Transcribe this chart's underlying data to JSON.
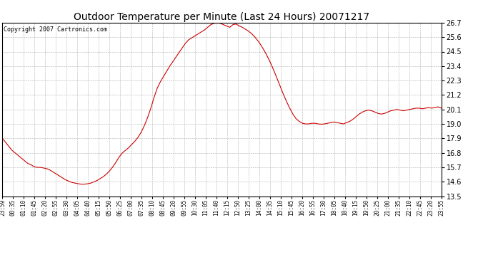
{
  "title": "Outdoor Temperature per Minute (Last 24 Hours) 20071217",
  "copyright": "Copyright 2007 Cartronics.com",
  "line_color": "#cc0000",
  "background_color": "#ffffff",
  "grid_color": "#b0b0b0",
  "ylim": [
    13.5,
    26.7
  ],
  "yticks": [
    13.5,
    14.6,
    15.7,
    16.8,
    17.9,
    19.0,
    20.1,
    21.2,
    22.3,
    23.4,
    24.5,
    25.6,
    26.7
  ],
  "xtick_labels": [
    "23:59",
    "00:35",
    "01:10",
    "01:45",
    "02:20",
    "02:55",
    "03:30",
    "04:05",
    "04:40",
    "05:15",
    "05:50",
    "06:25",
    "07:00",
    "07:35",
    "08:10",
    "08:45",
    "09:20",
    "09:55",
    "10:30",
    "11:05",
    "11:40",
    "12:15",
    "12:50",
    "13:25",
    "14:00",
    "14:35",
    "15:10",
    "15:45",
    "16:20",
    "16:55",
    "17:30",
    "18:05",
    "18:40",
    "19:15",
    "19:50",
    "20:25",
    "21:00",
    "21:35",
    "22:10",
    "22:45",
    "23:20",
    "23:55"
  ],
  "temp_data": [
    17.9,
    17.6,
    17.3,
    17.0,
    16.8,
    16.6,
    16.4,
    16.2,
    16.0,
    15.9,
    15.75,
    15.7,
    15.7,
    15.65,
    15.6,
    15.5,
    15.35,
    15.2,
    15.05,
    14.9,
    14.75,
    14.65,
    14.55,
    14.5,
    14.45,
    14.42,
    14.42,
    14.45,
    14.5,
    14.6,
    14.7,
    14.85,
    15.0,
    15.2,
    15.45,
    15.75,
    16.1,
    16.5,
    16.8,
    17.0,
    17.2,
    17.45,
    17.7,
    18.0,
    18.4,
    18.9,
    19.5,
    20.2,
    21.0,
    21.7,
    22.2,
    22.6,
    23.0,
    23.4,
    23.75,
    24.1,
    24.45,
    24.8,
    25.15,
    25.4,
    25.55,
    25.7,
    25.85,
    26.0,
    26.15,
    26.35,
    26.55,
    26.65,
    26.7,
    26.65,
    26.55,
    26.45,
    26.35,
    26.55,
    26.6,
    26.45,
    26.35,
    26.2,
    26.05,
    25.85,
    25.6,
    25.3,
    24.95,
    24.55,
    24.1,
    23.6,
    23.05,
    22.45,
    21.85,
    21.25,
    20.7,
    20.2,
    19.75,
    19.4,
    19.2,
    19.05,
    19.0,
    19.0,
    19.05,
    19.05,
    19.0,
    18.98,
    19.0,
    19.05,
    19.1,
    19.15,
    19.1,
    19.05,
    19.0,
    19.1,
    19.2,
    19.35,
    19.55,
    19.75,
    19.9,
    20.0,
    20.05,
    20.0,
    19.9,
    19.8,
    19.75,
    19.8,
    19.9,
    20.0,
    20.05,
    20.1,
    20.05,
    20.0,
    20.05,
    20.1,
    20.15,
    20.2,
    20.2,
    20.15,
    20.2,
    20.25,
    20.2,
    20.25,
    20.3,
    20.2
  ]
}
